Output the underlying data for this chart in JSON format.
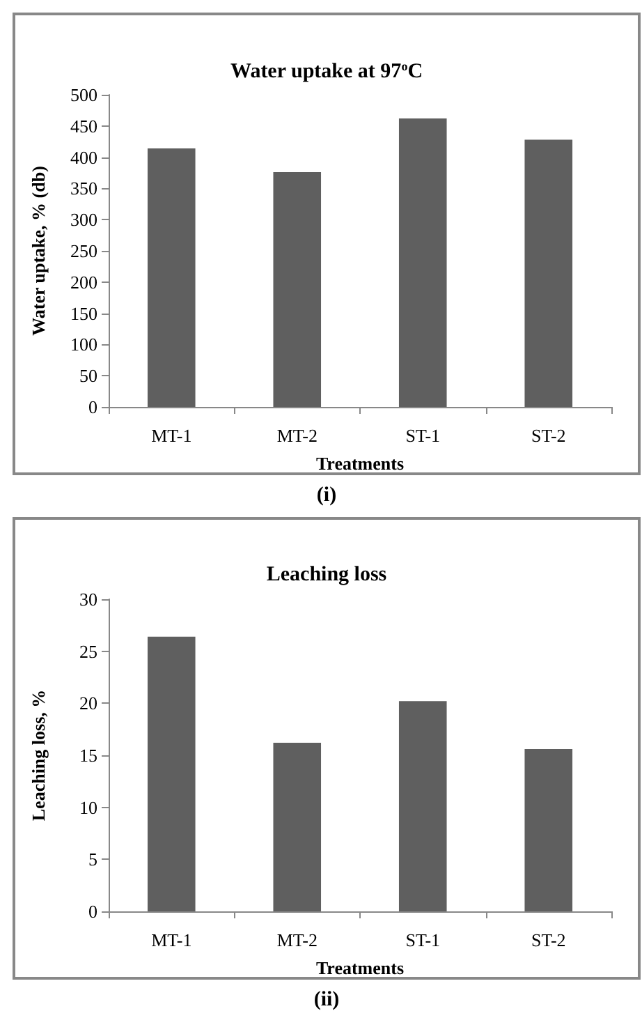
{
  "chart_data": [
    {
      "type": "bar",
      "title": "Water uptake at 97$^{o}$C",
      "xlabel": "Treatments",
      "ylabel": "Water uptake, % (db)",
      "categories": [
        "MT-1",
        "MT-2",
        "ST-1",
        "ST-2"
      ],
      "values": [
        414,
        376,
        462,
        428
      ],
      "color": "#5f5f5f",
      "ylim": [
        0,
        500
      ],
      "yticks": [
        0,
        50,
        100,
        150,
        200,
        250,
        300,
        350,
        400,
        450,
        500
      ],
      "annotations": [
        "(i)"
      ]
    },
    {
      "type": "bar",
      "title": "Leaching loss",
      "xlabel": "Treatments",
      "ylabel": "Leaching loss, %",
      "categories": [
        "MT-1",
        "MT-2",
        "ST-1",
        "ST-2"
      ],
      "values": [
        26.4,
        16.2,
        20.2,
        15.6
      ],
      "color": "#5f5f5f",
      "ylim": [
        0,
        30
      ],
      "yticks": [
        0,
        5,
        10,
        15,
        20,
        25,
        30
      ],
      "annotations": [
        "(ii)"
      ]
    }
  ]
}
